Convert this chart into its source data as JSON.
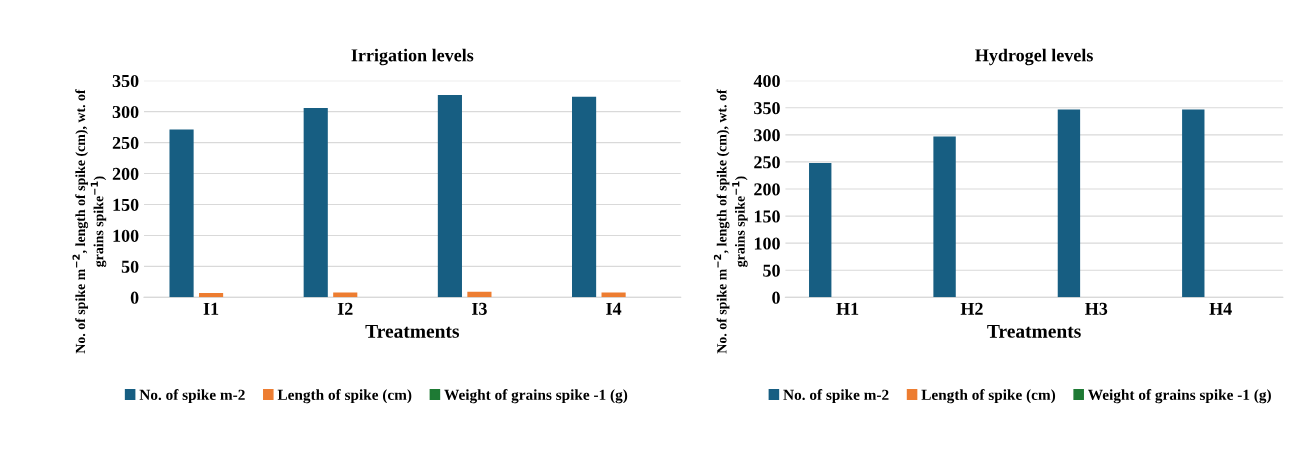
{
  "chart_data": [
    {
      "type": "bar",
      "title": "Irrigation levels",
      "xlabel": "Treatments",
      "ylabel": "No. of spike m$^{−2}$, length of spike (cm), wt. of\ngrains spike$^{−1}$)",
      "categories": [
        "I1",
        "I2",
        "I3",
        "I4"
      ],
      "series": [
        {
          "name": "No. of spike m-2",
          "color": "#175e82",
          "values": [
            271,
            306,
            327,
            324
          ]
        },
        {
          "name": "Length of spike (cm)",
          "color": "#ed7d31",
          "values": [
            7,
            8,
            9,
            8
          ]
        },
        {
          "name": "Weight of grains spike -1 (g)",
          "color": "#1e7a34",
          "values": [
            null,
            null,
            null,
            null
          ]
        }
      ],
      "ylim": [
        0,
        350
      ],
      "yticks": [
        0,
        50,
        100,
        150,
        200,
        250,
        300,
        350
      ],
      "grid": "y",
      "legend": "bottom"
    },
    {
      "type": "bar",
      "title": "Hydrogel levels",
      "xlabel": "Treatments",
      "ylabel": "No. of spike m$^{−2}$, length of spike (cm), wt. of\ngrains spike$^{−1}$)",
      "categories": [
        "H1",
        "H2",
        "H3",
        "H4"
      ],
      "series": [
        {
          "name": "No. of spike m-2",
          "color": "#175e82",
          "values": [
            248,
            297,
            347,
            347
          ]
        },
        {
          "name": "Length of spike (cm)",
          "color": "#ed7d31",
          "values": [
            null,
            null,
            null,
            null
          ]
        },
        {
          "name": "Weight of grains spike -1 (g)",
          "color": "#1e7a34",
          "values": [
            null,
            null,
            null,
            null
          ]
        }
      ],
      "ylim": [
        0,
        400
      ],
      "yticks": [
        0,
        50,
        100,
        150,
        200,
        250,
        300,
        350,
        400
      ],
      "grid": "y",
      "legend": "bottom"
    }
  ]
}
